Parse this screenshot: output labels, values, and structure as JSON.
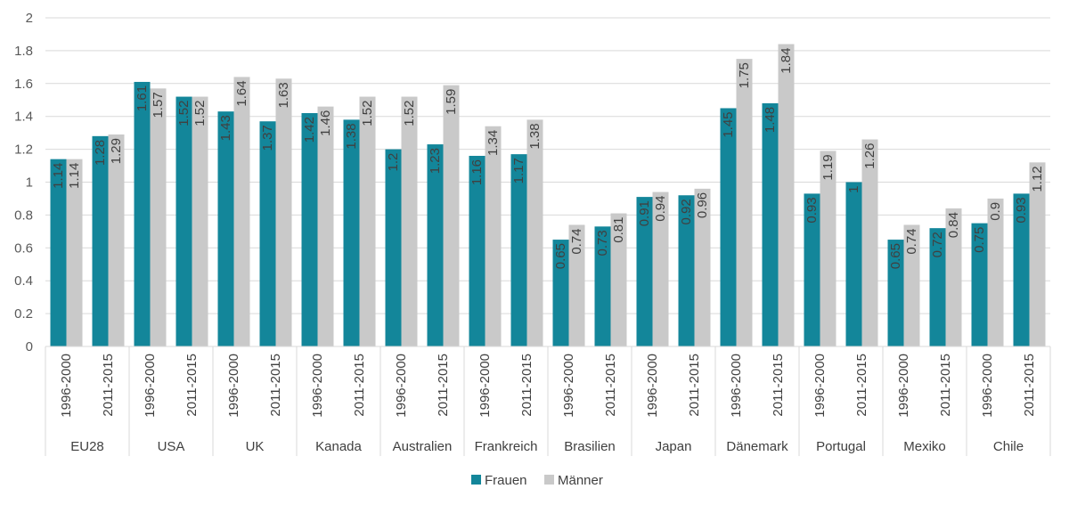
{
  "chart_data": {
    "type": "bar",
    "groups": [
      "EU28",
      "USA",
      "UK",
      "Kanada",
      "Australien",
      "Frankreich",
      "Brasilien",
      "Japan",
      "Dänemark",
      "Portugal",
      "Mexiko",
      "Chile"
    ],
    "periods": [
      "1996-2000",
      "2011-2015"
    ],
    "series": [
      {
        "name": "Frauen",
        "color": "#13869a",
        "values": [
          1.14,
          1.28,
          1.61,
          1.52,
          1.43,
          1.37,
          1.42,
          1.38,
          1.2,
          1.23,
          1.16,
          1.17,
          0.65,
          0.73,
          0.91,
          0.92,
          1.45,
          1.48,
          0.93,
          1,
          0.65,
          0.72,
          0.75,
          0.93
        ]
      },
      {
        "name": "Männer",
        "color": "#c9c9c9",
        "values": [
          1.14,
          1.29,
          1.57,
          1.52,
          1.64,
          1.63,
          1.46,
          1.52,
          1.52,
          1.59,
          1.34,
          1.38,
          0.74,
          0.81,
          0.94,
          0.96,
          1.75,
          1.84,
          1.19,
          1.26,
          0.74,
          0.84,
          0.9,
          1.12
        ]
      }
    ],
    "yticks": [
      "0",
      "0.2",
      "0.4",
      "0.6",
      "0.8",
      "1",
      "1.2",
      "1.4",
      "1.6",
      "1.8",
      "2"
    ],
    "ylim": [
      0,
      2
    ],
    "grid": true,
    "legend": "bottom-center"
  }
}
